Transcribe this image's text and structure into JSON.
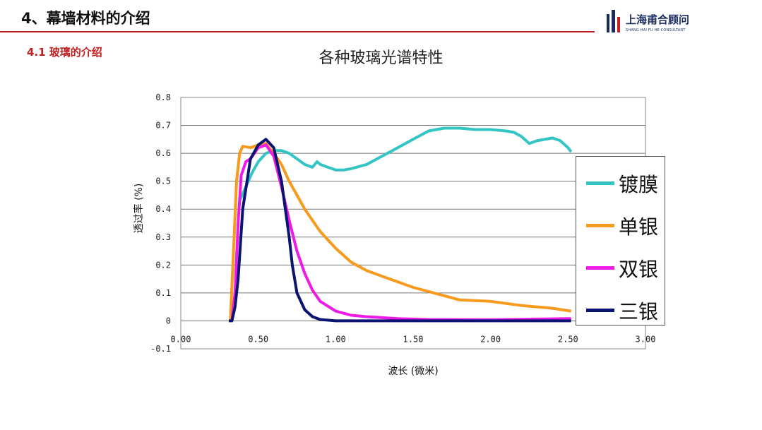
{
  "header": {
    "title": "4、幕墙材料的介绍"
  },
  "logo": {
    "name": "上海甫合顾问",
    "sub": "SHANG HAI FU HE CONSULTANT",
    "color": "#1a2a5e"
  },
  "section": {
    "title": "4.1  玻璃的介绍"
  },
  "chart_data": {
    "type": "line",
    "title": "各种玻璃光谱特性",
    "xlabel": "波长 (微米)",
    "ylabel": "透过率 (%)",
    "xlim": [
      0,
      3
    ],
    "ylim": [
      -0.1,
      0.8
    ],
    "xticks": [
      "0.00",
      "0.50",
      "1.00",
      "1.50",
      "2.00",
      "2.50",
      "3.00"
    ],
    "yticks": [
      "-0.1",
      "0",
      "0.1",
      "0.2",
      "0.3",
      "0.4",
      "0.5",
      "0.6",
      "0.7",
      "0.8"
    ],
    "grid": "horizontal",
    "legend_position": "right",
    "series": [
      {
        "name": "镀膜",
        "color": "#33c4c4",
        "x": [
          0.38,
          0.42,
          0.46,
          0.5,
          0.55,
          0.6,
          0.65,
          0.7,
          0.75,
          0.8,
          0.85,
          0.88,
          0.9,
          0.95,
          1.0,
          1.05,
          1.1,
          1.2,
          1.3,
          1.4,
          1.5,
          1.6,
          1.7,
          1.8,
          1.9,
          2.0,
          2.1,
          2.15,
          2.2,
          2.25,
          2.3,
          2.4,
          2.45,
          2.5,
          2.52
        ],
        "y": [
          0.43,
          0.48,
          0.53,
          0.57,
          0.6,
          0.61,
          0.61,
          0.6,
          0.58,
          0.56,
          0.55,
          0.57,
          0.56,
          0.55,
          0.54,
          0.54,
          0.545,
          0.56,
          0.59,
          0.62,
          0.65,
          0.68,
          0.69,
          0.69,
          0.685,
          0.685,
          0.68,
          0.675,
          0.66,
          0.635,
          0.645,
          0.655,
          0.645,
          0.62,
          0.605
        ]
      },
      {
        "name": "单银",
        "color": "#f79a1d",
        "x": [
          0.32,
          0.34,
          0.36,
          0.38,
          0.4,
          0.45,
          0.5,
          0.55,
          0.6,
          0.65,
          0.7,
          0.75,
          0.8,
          0.85,
          0.9,
          1.0,
          1.1,
          1.2,
          1.3,
          1.5,
          1.7,
          1.8,
          2.0,
          2.2,
          2.4,
          2.52
        ],
        "y": [
          0.0,
          0.25,
          0.5,
          0.6,
          0.625,
          0.62,
          0.63,
          0.635,
          0.6,
          0.56,
          0.5,
          0.45,
          0.4,
          0.36,
          0.32,
          0.26,
          0.21,
          0.18,
          0.16,
          0.12,
          0.09,
          0.075,
          0.07,
          0.055,
          0.045,
          0.035
        ]
      },
      {
        "name": "双银",
        "color": "#ee1be8",
        "x": [
          0.33,
          0.35,
          0.37,
          0.39,
          0.42,
          0.45,
          0.5,
          0.55,
          0.6,
          0.65,
          0.7,
          0.75,
          0.8,
          0.85,
          0.9,
          1.0,
          1.1,
          1.2,
          1.4,
          1.6,
          2.0,
          2.5,
          2.52
        ],
        "y": [
          0.0,
          0.1,
          0.35,
          0.52,
          0.57,
          0.58,
          0.62,
          0.63,
          0.59,
          0.48,
          0.36,
          0.25,
          0.17,
          0.11,
          0.07,
          0.035,
          0.02,
          0.015,
          0.008,
          0.005,
          0.004,
          0.008,
          0.008
        ]
      },
      {
        "name": "三银",
        "color": "#0b1470",
        "x": [
          0.31,
          0.33,
          0.35,
          0.37,
          0.4,
          0.45,
          0.5,
          0.55,
          0.6,
          0.65,
          0.7,
          0.72,
          0.75,
          0.8,
          0.85,
          0.9,
          1.0,
          1.2,
          1.5,
          2.0,
          2.5,
          2.52
        ],
        "y": [
          0.0,
          0.0,
          0.05,
          0.15,
          0.4,
          0.58,
          0.63,
          0.65,
          0.62,
          0.5,
          0.3,
          0.2,
          0.1,
          0.04,
          0.015,
          0.005,
          0.0,
          0.0,
          0.0,
          0.0,
          0.0,
          0.0
        ]
      }
    ]
  }
}
